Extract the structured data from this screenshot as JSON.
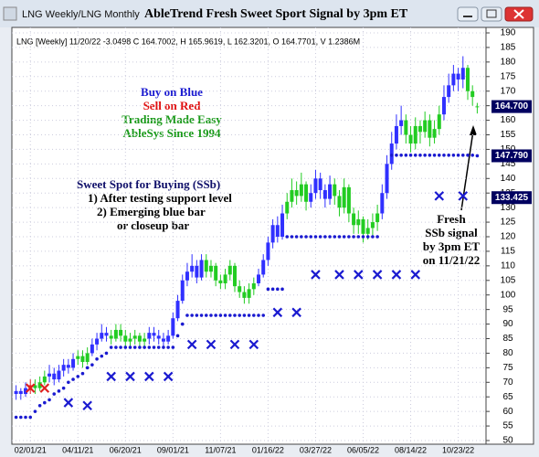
{
  "window_title": "LNG Weekly/LNG Monthly",
  "chart_data": {
    "type": "candlestick",
    "title": "AbleTrend Fresh Sweet Sport Signal by 3pm ET",
    "subtitle": "LNG [Weekly] 11/20/22 -3.0498 C 164.7002, H 165.9619, L 162.3201, O 164.7701, V 1.2386M",
    "annotations": [
      {
        "text": "Buy on Blue",
        "color": "#1a1ad0"
      },
      {
        "text": "Sell on Red",
        "color": "#e01010"
      },
      {
        "text": "Trading Made Easy",
        "color": "#1a9a1a"
      },
      {
        "text": "AbleSys Since 1994",
        "color": "#1a9a1a"
      },
      {
        "text": "Sweet Spot for Buying (SSb)",
        "color": "#10106a"
      },
      {
        "text": "1) After testing support level",
        "color": "#000000"
      },
      {
        "text": "2) Emerging blue bar",
        "color": "#000000"
      },
      {
        "text": "or closeup bar",
        "color": "#000000"
      },
      {
        "text": "Fresh",
        "color": "#000000"
      },
      {
        "text": "SSb signal",
        "color": "#000000"
      },
      {
        "text": "by 3pm ET",
        "color": "#000000"
      },
      {
        "text": "on 11/21/22",
        "color": "#000000"
      }
    ],
    "categories": [
      null,
      null,
      null,
      "02/01/21",
      null,
      null,
      null,
      null,
      null,
      null,
      null,
      null,
      null,
      "04/11/21",
      null,
      null,
      null,
      null,
      null,
      null,
      null,
      null,
      null,
      "06/20/21",
      null,
      null,
      null,
      null,
      null,
      null,
      null,
      null,
      null,
      "09/01/21",
      null,
      null,
      null,
      null,
      null,
      null,
      null,
      null,
      null,
      "11/07/21",
      null,
      null,
      null,
      null,
      null,
      null,
      null,
      null,
      null,
      "01/16/22",
      null,
      null,
      null,
      null,
      null,
      null,
      null,
      null,
      null,
      "03/27/22",
      null,
      null,
      null,
      null,
      null,
      null,
      null,
      null,
      null,
      "06/05/22",
      null,
      null,
      null,
      null,
      null,
      null,
      null,
      null,
      null,
      "08/14/22",
      null,
      null,
      null,
      null,
      null,
      null,
      null,
      null,
      null,
      "10/23/22",
      null,
      null,
      null,
      null
    ],
    "open": [
      66,
      67,
      66,
      68,
      69,
      68,
      70,
      72,
      73,
      71,
      74,
      76,
      75,
      78,
      79,
      77,
      80,
      83,
      85,
      87,
      86,
      85,
      88,
      86,
      84,
      85,
      86,
      84,
      85,
      87,
      86,
      85,
      84,
      86,
      92,
      98,
      105,
      108,
      110,
      106,
      112,
      108,
      110,
      105,
      104,
      107,
      110,
      103,
      101,
      99,
      102,
      104,
      107,
      112,
      118,
      124,
      120,
      128,
      132,
      136,
      134,
      138,
      132,
      135,
      140,
      136,
      133,
      138,
      134,
      130,
      137,
      128,
      124,
      126,
      121,
      123,
      125,
      128,
      135,
      145,
      152,
      158,
      160,
      155,
      152,
      158,
      156,
      160,
      154,
      157,
      162,
      168,
      172,
      176,
      174,
      178,
      170,
      164.7701
    ],
    "high": [
      69,
      68,
      70,
      71,
      71,
      72,
      74,
      76,
      75,
      76,
      78,
      78,
      80,
      81,
      81,
      82,
      85,
      87,
      90,
      89,
      88,
      90,
      90,
      88,
      87,
      88,
      87,
      87,
      89,
      89,
      88,
      87,
      88,
      94,
      100,
      107,
      111,
      114,
      112,
      114,
      114,
      112,
      111,
      107,
      109,
      112,
      111,
      105,
      103,
      104,
      106,
      109,
      114,
      120,
      126,
      127,
      131,
      135,
      140,
      139,
      142,
      139,
      138,
      143,
      142,
      138,
      141,
      140,
      136,
      140,
      138,
      130,
      129,
      127,
      126,
      128,
      131,
      138,
      148,
      156,
      162,
      165,
      162,
      158,
      161,
      160,
      163,
      162,
      160,
      165,
      172,
      176,
      179,
      178,
      182,
      179,
      172,
      165.9619
    ],
    "low": [
      64,
      64,
      65,
      66,
      66,
      67,
      69,
      70,
      69,
      70,
      72,
      73,
      74,
      76,
      75,
      76,
      79,
      81,
      84,
      84,
      83,
      84,
      84,
      82,
      82,
      83,
      82,
      82,
      83,
      84,
      83,
      82,
      83,
      85,
      91,
      97,
      103,
      106,
      104,
      105,
      106,
      106,
      103,
      102,
      102,
      105,
      101,
      99,
      97,
      97,
      100,
      103,
      106,
      110,
      116,
      118,
      119,
      126,
      130,
      131,
      132,
      129,
      130,
      133,
      133,
      130,
      131,
      131,
      127,
      128,
      125,
      121,
      121,
      118,
      119,
      120,
      122,
      126,
      133,
      143,
      150,
      155,
      152,
      149,
      150,
      152,
      154,
      151,
      152,
      155,
      160,
      166,
      170,
      170,
      171,
      167,
      165,
      162.3201
    ],
    "close": [
      67,
      66,
      68,
      69,
      68,
      70,
      72,
      73,
      71,
      74,
      76,
      75,
      78,
      79,
      77,
      80,
      83,
      85,
      87,
      86,
      85,
      88,
      86,
      84,
      85,
      86,
      84,
      85,
      87,
      86,
      85,
      84,
      86,
      92,
      98,
      105,
      108,
      110,
      106,
      112,
      108,
      110,
      105,
      104,
      107,
      110,
      103,
      101,
      99,
      102,
      104,
      107,
      112,
      118,
      124,
      120,
      128,
      132,
      136,
      134,
      138,
      132,
      135,
      140,
      136,
      133,
      138,
      134,
      130,
      137,
      128,
      124,
      126,
      121,
      123,
      125,
      128,
      135,
      145,
      152,
      158,
      160,
      155,
      152,
      158,
      156,
      160,
      154,
      157,
      162,
      168,
      172,
      176,
      174,
      178,
      170,
      168,
      164.7002
    ],
    "colors": [
      "#3030ff",
      "#3030ff",
      "#3030ff",
      "#e02020",
      "#22cc22",
      "#22cc22",
      "#22cc22",
      "#3030ff",
      "#3030ff",
      "#3030ff",
      "#3030ff",
      "#3030ff",
      "#3030ff",
      "#22cc22",
      "#22cc22",
      "#22cc22",
      "#3030ff",
      "#3030ff",
      "#3030ff",
      "#3030ff",
      "#22cc22",
      "#22cc22",
      "#22cc22",
      "#22cc22",
      "#22cc22",
      "#22cc22",
      "#22cc22",
      "#22cc22",
      "#3030ff",
      "#3030ff",
      "#3030ff",
      "#3030ff",
      "#3030ff",
      "#3030ff",
      "#3030ff",
      "#3030ff",
      "#3030ff",
      "#3030ff",
      "#3030ff",
      "#3030ff",
      "#22cc22",
      "#22cc22",
      "#22cc22",
      "#22cc22",
      "#22cc22",
      "#22cc22",
      "#22cc22",
      "#22cc22",
      "#22cc22",
      "#22cc22",
      "#22cc22",
      "#3030ff",
      "#3030ff",
      "#3030ff",
      "#3030ff",
      "#3030ff",
      "#3030ff",
      "#22cc22",
      "#22cc22",
      "#22cc22",
      "#22cc22",
      "#22cc22",
      "#3030ff",
      "#3030ff",
      "#3030ff",
      "#3030ff",
      "#3030ff",
      "#22cc22",
      "#22cc22",
      "#22cc22",
      "#22cc22",
      "#22cc22",
      "#22cc22",
      "#22cc22",
      "#22cc22",
      "#22cc22",
      "#22cc22",
      "#3030ff",
      "#3030ff",
      "#3030ff",
      "#3030ff",
      "#3030ff",
      "#22cc22",
      "#22cc22",
      "#22cc22",
      "#22cc22",
      "#22cc22",
      "#22cc22",
      "#22cc22",
      "#22cc22",
      "#3030ff",
      "#3030ff",
      "#3030ff",
      "#3030ff",
      "#3030ff",
      "#22cc22",
      "#22cc22",
      "#22cc22"
    ],
    "stops": {
      "color": "#1a1ad0",
      "values": [
        58,
        58,
        58,
        58,
        60,
        62,
        63,
        64,
        66,
        67,
        68,
        70,
        71,
        72,
        73,
        75,
        76,
        78,
        79,
        80,
        82,
        82,
        82,
        82,
        82,
        82,
        82,
        82,
        82,
        82,
        82,
        82,
        82,
        82,
        86,
        90,
        93,
        93,
        93,
        93,
        93,
        93,
        93,
        93,
        93,
        93,
        93,
        93,
        93,
        93,
        93,
        93,
        93,
        102,
        102,
        102,
        102,
        120,
        120,
        120,
        120,
        120,
        120,
        120,
        120,
        120,
        120,
        120,
        120,
        120,
        120,
        120,
        120,
        120,
        120,
        120,
        120,
        null,
        null,
        148,
        148,
        148,
        148,
        148,
        148,
        148,
        148,
        148,
        148,
        148,
        148,
        148,
        148,
        148,
        148,
        148,
        148,
        147.79
      ]
    },
    "ssb_buy": {
      "color": "#1a1ad0",
      "values": [
        null,
        null,
        null,
        null,
        null,
        null,
        null,
        null,
        null,
        null,
        null,
        63,
        null,
        null,
        null,
        62,
        null,
        null,
        null,
        null,
        72,
        null,
        null,
        null,
        72,
        null,
        null,
        null,
        72,
        null,
        null,
        null,
        72,
        null,
        null,
        null,
        null,
        83,
        null,
        null,
        null,
        83,
        null,
        null,
        null,
        null,
        83,
        null,
        null,
        null,
        83,
        null,
        null,
        null,
        null,
        94,
        null,
        null,
        null,
        94,
        null,
        null,
        null,
        107,
        null,
        null,
        null,
        null,
        107,
        null,
        null,
        null,
        107,
        null,
        null,
        null,
        107,
        null,
        null,
        null,
        107,
        null,
        null,
        null,
        107,
        null,
        null,
        null,
        null,
        134,
        null,
        null,
        null,
        null,
        134,
        null,
        null,
        null
      ]
    },
    "ssb_sell": {
      "color": "#e02020",
      "values": [
        null,
        null,
        null,
        68,
        null,
        null,
        68,
        null,
        null,
        null,
        null,
        null,
        null,
        null,
        null,
        null,
        null,
        null,
        null,
        null,
        null,
        null,
        null,
        null,
        null,
        null,
        null,
        null,
        null,
        null,
        null,
        null,
        null,
        null,
        null,
        null,
        null,
        null,
        null,
        null,
        null,
        null,
        null,
        null,
        null,
        null,
        null,
        null,
        null,
        null,
        null,
        null,
        null,
        null,
        null,
        null,
        null,
        null,
        null,
        null,
        null,
        null,
        null,
        null,
        null,
        null,
        null,
        null,
        null,
        null,
        null,
        null,
        null,
        null,
        null,
        null,
        null,
        null,
        null,
        null,
        null,
        null,
        null,
        null,
        null,
        null,
        null,
        null,
        null,
        null,
        null,
        null,
        null,
        null,
        null,
        null,
        null,
        null
      ]
    },
    "price_tags": [
      {
        "value": 164.7,
        "label": "164.700",
        "color": "#000060"
      },
      {
        "value": 147.79,
        "label": "147.790",
        "color": "#000060"
      },
      {
        "value": 133.425,
        "label": "133.425",
        "color": "#000060"
      }
    ],
    "ylim": [
      50,
      190
    ],
    "yticks": [
      50,
      55,
      60,
      65,
      70,
      75,
      80,
      85,
      90,
      95,
      100,
      105,
      110,
      115,
      120,
      125,
      130,
      135,
      140,
      145,
      150,
      155,
      160,
      165,
      170,
      175,
      180,
      185,
      190
    ],
    "grid": true
  }
}
